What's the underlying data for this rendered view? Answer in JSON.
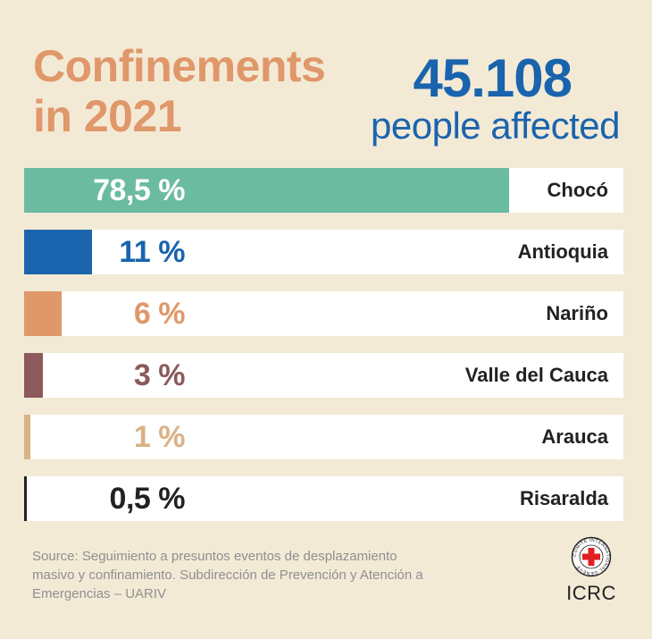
{
  "title": {
    "line1": "Confinements",
    "line2": "in 2021"
  },
  "headline": {
    "number": "45.108",
    "caption": "people affected"
  },
  "source": "Source: Seguimiento a presuntos eventos de desplazamiento masivo y confinamiento. Subdirección de Prevención y Atención a Emergencias – UARIV",
  "logo": {
    "text": "ICRC",
    "seal_text": "COMITE INTERNATIONAL GENEVE"
  },
  "colors": {
    "background": "#f3ead6",
    "title": "#e0976a",
    "headline": "#1a64ae"
  },
  "chart_data": {
    "type": "bar",
    "orientation": "horizontal",
    "xlim": [
      0,
      100
    ],
    "categories": [
      "Chocó",
      "Antioquia",
      "Nariño",
      "Valle del Cauca",
      "Arauca",
      "Risaralda"
    ],
    "values": [
      78.5,
      11,
      6,
      3,
      1,
      0.5
    ],
    "value_labels": [
      "78,5 %",
      "11 %",
      "6 %",
      "3 %",
      "1 %",
      "0,5 %"
    ],
    "colors": [
      "#6bbba1",
      "#1a64ae",
      "#e0976a",
      "#8c5a5a",
      "#d9b184",
      "#222222"
    ],
    "label_colors": [
      "#ffffff",
      "#1a64ae",
      "#e0976a",
      "#8c5a5a",
      "#d9b184",
      "#222222"
    ]
  }
}
